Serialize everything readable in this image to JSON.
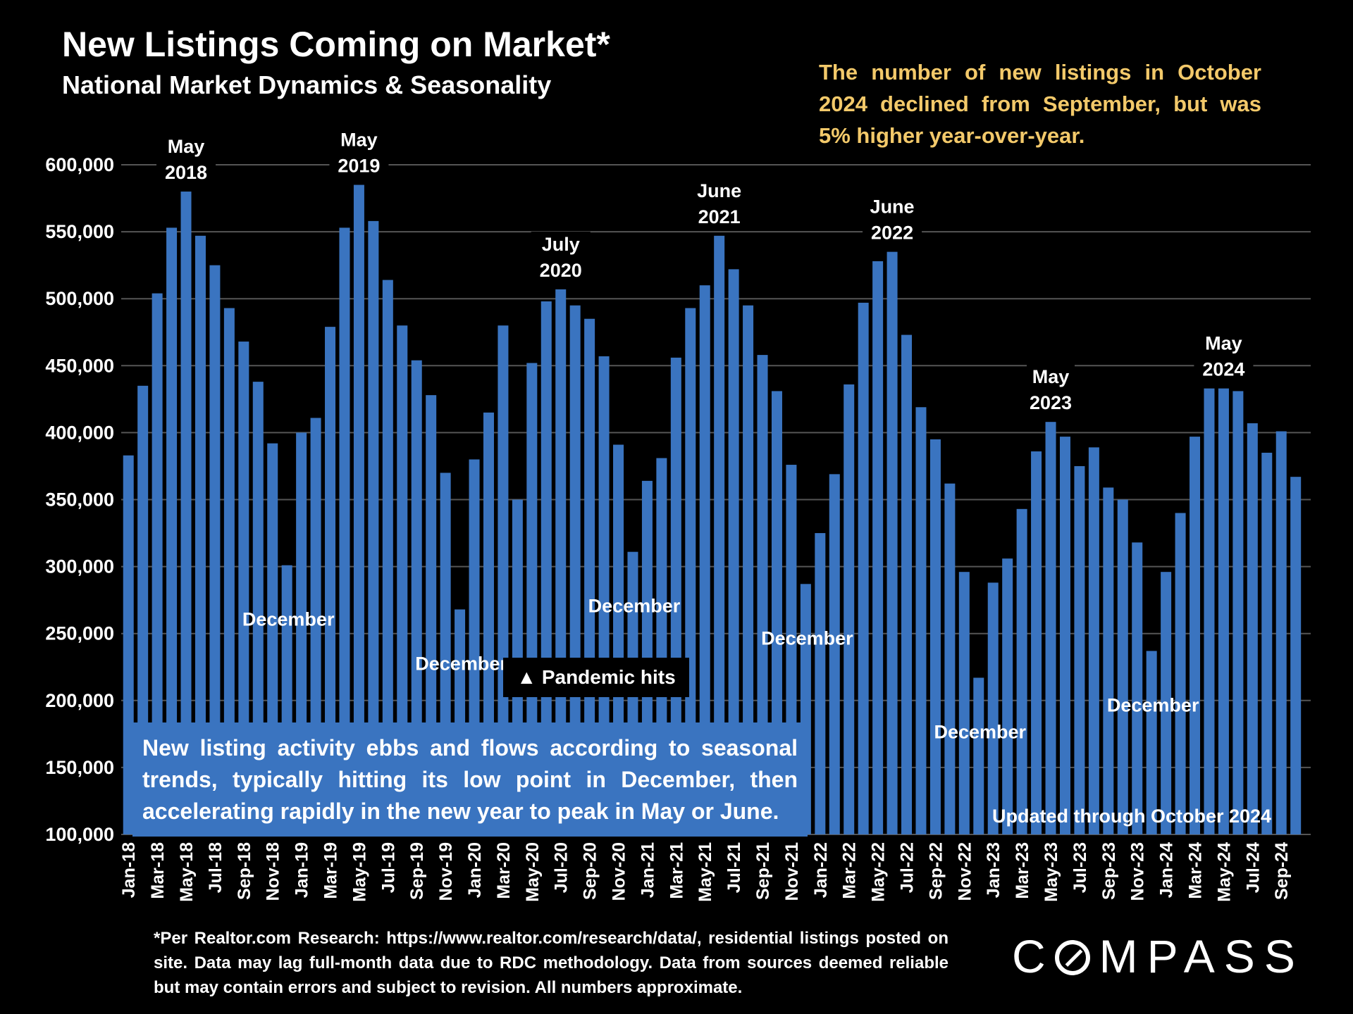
{
  "header": {
    "title": "New Listings Coming on Market*",
    "subtitle": "National Market Dynamics & Seasonality"
  },
  "callout": "The number of new listings in October 2024 declined from September, but was 5% higher year-over-year.",
  "note_box": "New listing activity ebbs and flows according to seasonal trends, typically hitting its low point in December, then accelerating rapidly in the new year to peak in May or June.",
  "pandemic_label": "▲ Pandemic hits",
  "updated_label": "Updated through October 2024",
  "footnote": "*Per Realtor.com Research: https://www.realtor.com/research/data/, residential listings posted on site. Data may lag full-month data due to RDC methodology. Data from sources deemed reliable but may contain errors and subject to revision. All numbers approximate.",
  "logo": {
    "text": "COMPASS"
  },
  "colors": {
    "bar": "#3a74c0",
    "callout": "#f3c96a",
    "background": "#000000"
  },
  "chart_data": {
    "type": "bar",
    "ylim": [
      100000,
      600000
    ],
    "yticks": [
      100000,
      150000,
      200000,
      250000,
      300000,
      350000,
      400000,
      450000,
      500000,
      550000,
      600000
    ],
    "ytick_labels": [
      "100,000",
      "150,000",
      "200,000",
      "250,000",
      "300,000",
      "350,000",
      "400,000",
      "450,000",
      "500,000",
      "550,000",
      "600,000"
    ],
    "grid": true,
    "categories": [
      "Jan-18",
      "Feb-18",
      "Mar-18",
      "Apr-18",
      "May-18",
      "Jun-18",
      "Jul-18",
      "Aug-18",
      "Sep-18",
      "Oct-18",
      "Nov-18",
      "Dec-18",
      "Jan-19",
      "Feb-19",
      "Mar-19",
      "Apr-19",
      "May-19",
      "Jun-19",
      "Jul-19",
      "Aug-19",
      "Sep-19",
      "Oct-19",
      "Nov-19",
      "Dec-19",
      "Jan-20",
      "Feb-20",
      "Mar-20",
      "Apr-20",
      "May-20",
      "Jun-20",
      "Jul-20",
      "Aug-20",
      "Sep-20",
      "Oct-20",
      "Nov-20",
      "Dec-20",
      "Jan-21",
      "Feb-21",
      "Mar-21",
      "Apr-21",
      "May-21",
      "Jun-21",
      "Jul-21",
      "Aug-21",
      "Sep-21",
      "Oct-21",
      "Nov-21",
      "Dec-21",
      "Jan-22",
      "Feb-22",
      "Mar-22",
      "Apr-22",
      "May-22",
      "Jun-22",
      "Jul-22",
      "Aug-22",
      "Sep-22",
      "Oct-22",
      "Nov-22",
      "Dec-22",
      "Jan-23",
      "Feb-23",
      "Mar-23",
      "Apr-23",
      "May-23",
      "Jun-23",
      "Jul-23",
      "Aug-23",
      "Sep-23",
      "Oct-23",
      "Nov-23",
      "Dec-23",
      "Jan-24",
      "Feb-24",
      "Mar-24",
      "Apr-24",
      "May-24",
      "Jun-24",
      "Jul-24",
      "Aug-24",
      "Sep-24",
      "Oct-24"
    ],
    "values": [
      383000,
      435000,
      504000,
      553000,
      580000,
      547000,
      525000,
      493000,
      468000,
      438000,
      392000,
      301000,
      400000,
      411000,
      479000,
      553000,
      585000,
      558000,
      514000,
      480000,
      454000,
      428000,
      370000,
      268000,
      380000,
      415000,
      480000,
      350000,
      452000,
      498000,
      507000,
      495000,
      485000,
      457000,
      391000,
      311000,
      364000,
      381000,
      456000,
      493000,
      510000,
      547000,
      522000,
      495000,
      458000,
      431000,
      376000,
      287000,
      325000,
      369000,
      436000,
      497000,
      528000,
      535000,
      473000,
      419000,
      395000,
      362000,
      296000,
      217000,
      288000,
      306000,
      343000,
      386000,
      408000,
      397000,
      375000,
      389000,
      359000,
      350000,
      318000,
      237000,
      296000,
      340000,
      397000,
      433000,
      433000,
      431000,
      407000,
      385000,
      401000,
      367000
    ],
    "xtick_labels": [
      "Jan-18",
      "Mar-18",
      "May-18",
      "Jul-18",
      "Sep-18",
      "Nov-18",
      "Jan-19",
      "Mar-19",
      "May-19",
      "Jul-19",
      "Sep-19",
      "Nov-19",
      "Jan-20",
      "Mar-20",
      "May-20",
      "Jul-20",
      "Sep-20",
      "Nov-20",
      "Jan-21",
      "Mar-21",
      "May-21",
      "Jul-21",
      "Sep-21",
      "Nov-21",
      "Jan-22",
      "Mar-22",
      "May-22",
      "Jul-22",
      "Sep-22",
      "Nov-22",
      "Jan-23",
      "Mar-23",
      "May-23",
      "Jul-23",
      "Sep-23",
      "Nov-23",
      "Jan-24",
      "Mar-24",
      "May-24",
      "Jul-24",
      "Sep-24"
    ],
    "annotations": [
      {
        "month": "May-18",
        "lines": [
          "May",
          "2018"
        ]
      },
      {
        "month": "May-19",
        "lines": [
          "May",
          "2019"
        ]
      },
      {
        "month": "Jul-20",
        "lines": [
          "July",
          "2020"
        ]
      },
      {
        "month": "Jun-21",
        "lines": [
          "June",
          "2021"
        ]
      },
      {
        "month": "Jun-22",
        "lines": [
          "June",
          "2022"
        ]
      },
      {
        "month": "May-23",
        "lines": [
          "May",
          "2023"
        ]
      },
      {
        "month": "May-24",
        "lines": [
          "May",
          "2024"
        ]
      },
      {
        "month": "Dec-18",
        "lines": [
          "December"
        ]
      },
      {
        "month": "Dec-19",
        "lines": [
          "December"
        ]
      },
      {
        "month": "Dec-20",
        "lines": [
          "December"
        ]
      },
      {
        "month": "Dec-21",
        "lines": [
          "December"
        ]
      },
      {
        "month": "Dec-22",
        "lines": [
          "December"
        ]
      },
      {
        "month": "Dec-23",
        "lines": [
          "December"
        ]
      }
    ]
  }
}
